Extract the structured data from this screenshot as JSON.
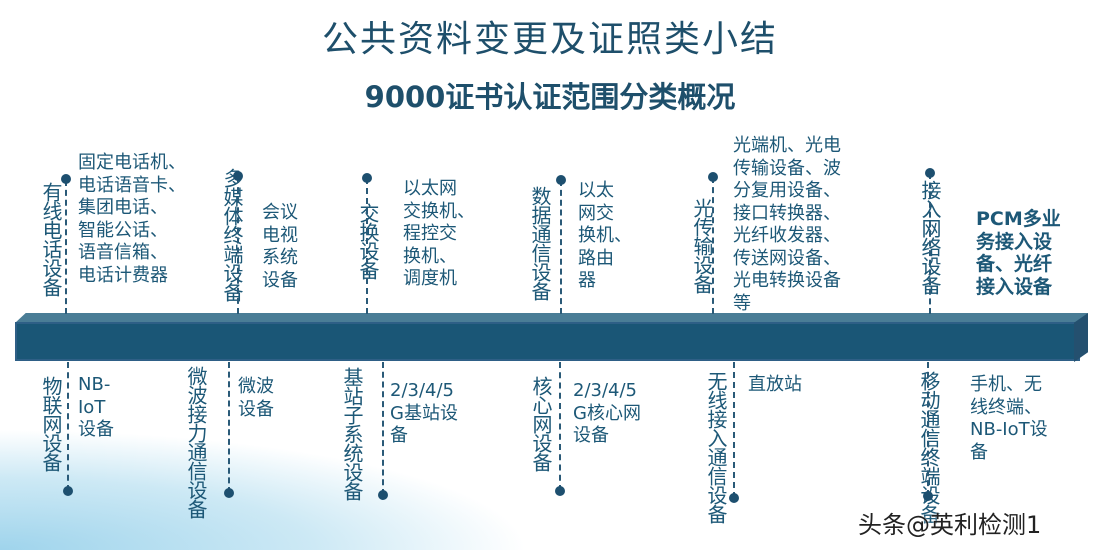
{
  "title": "公共资料变更及证照类小结",
  "subtitle": "9000证书认证范围分类概况",
  "top_items": [
    {
      "category": "有线电话设备",
      "description": "固定电话机、\n电话语音卡、\n集团电话、\n智能公话、\n语音信箱、\n电话计费器"
    },
    {
      "category": "多媒体终端设备",
      "description": "会议\n电视\n系统\n设备"
    },
    {
      "category": "交换设备",
      "description": "以太网\n交换机、\n程控交\n换机、\n调度机"
    },
    {
      "category": "数据通信设备",
      "description": "以太\n网交\n换机、\n路由\n器"
    },
    {
      "category": "光传输设备",
      "description": "光端机、光电\n传输设备、波\n分复用设备、\n接口转换器、\n光纤收发器、\n传送网设备、\n光电转换设备\n等"
    },
    {
      "category": "接入网络设备",
      "description": "PCM多业\n务接入设\n备、光纤\n接入设备"
    }
  ],
  "bottom_items": [
    {
      "category": "物联网设备",
      "description": "NB-\nIoT\n设备"
    },
    {
      "category": "微波接力通信设备",
      "description": "微波\n设备"
    },
    {
      "category": "基站子系统设备",
      "description": "2/3/4/5\nG基站设\n备"
    },
    {
      "category": "核心网设备",
      "description": "2/3/4/5\nG核心网\n设备"
    },
    {
      "category": "无线接入通信设备",
      "description": "直放站"
    },
    {
      "category": "移动通信终端设备",
      "description": "手机、无\n线终端、\nNB-IoT设\n备"
    }
  ],
  "watermark": "头条@英利检测1",
  "colors": {
    "bar": "#1a5676",
    "text": "#1d5877"
  }
}
